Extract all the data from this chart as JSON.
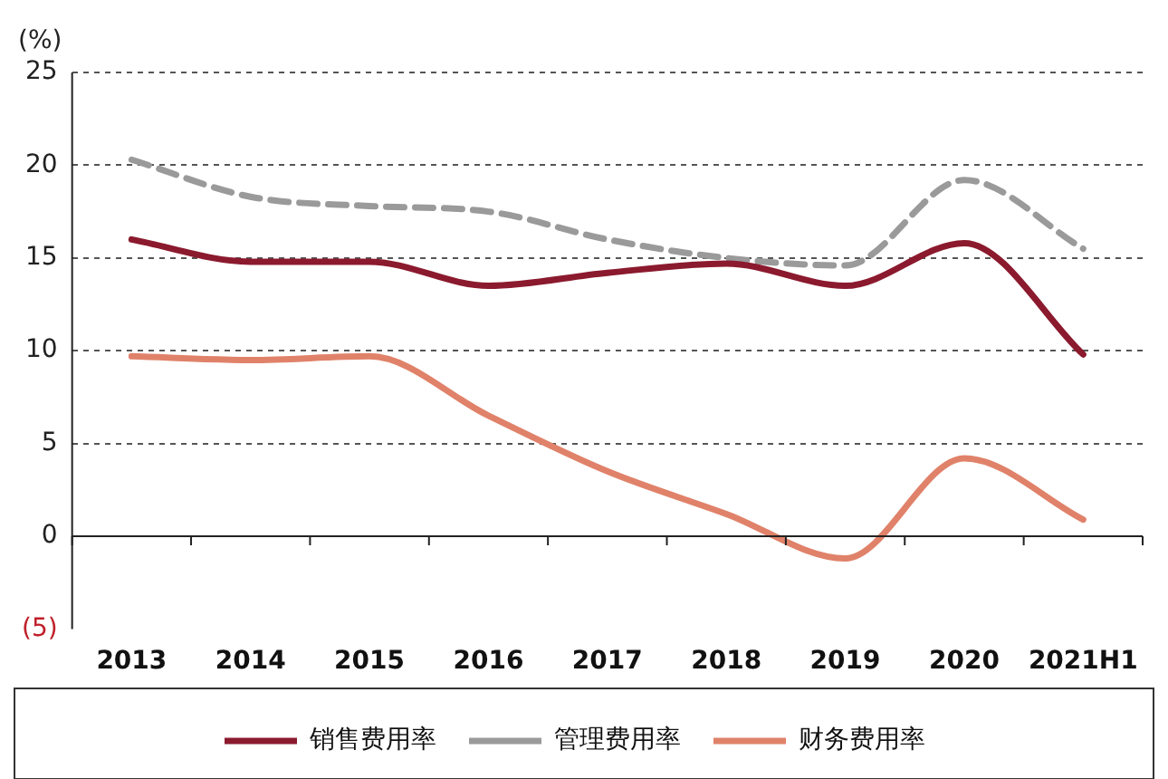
{
  "chart_data": {
    "type": "line",
    "ylabel": "(%)",
    "categories": [
      "2013",
      "2014",
      "2015",
      "2016",
      "2017",
      "2018",
      "2019",
      "2020",
      "2021H1"
    ],
    "series": [
      {
        "name": "销售费用率",
        "color": "#8b1a2e",
        "line_style": "solid",
        "values": [
          16,
          14.8,
          14.8,
          13.5,
          14.2,
          14.7,
          13.5,
          15.8,
          9.8
        ]
      },
      {
        "name": "管理费用率",
        "color": "#9a9a9a",
        "line_style": "dashed",
        "values": [
          20.3,
          18.3,
          17.8,
          17.5,
          16,
          15,
          14.6,
          19.2,
          15.5
        ]
      },
      {
        "name": "财务费用率",
        "color": "#e0826a",
        "line_style": "solid",
        "values": [
          9.7,
          9.5,
          9.7,
          6.5,
          3.5,
          1.2,
          -1.2,
          4.2,
          0.9
        ]
      }
    ],
    "ylim": [
      -5,
      25
    ],
    "yticks": [
      {
        "value": -5,
        "label": "(5)"
      },
      0,
      5,
      10,
      15,
      20,
      25
    ],
    "grid": "y",
    "legend": "bottom",
    "marker": "none"
  }
}
